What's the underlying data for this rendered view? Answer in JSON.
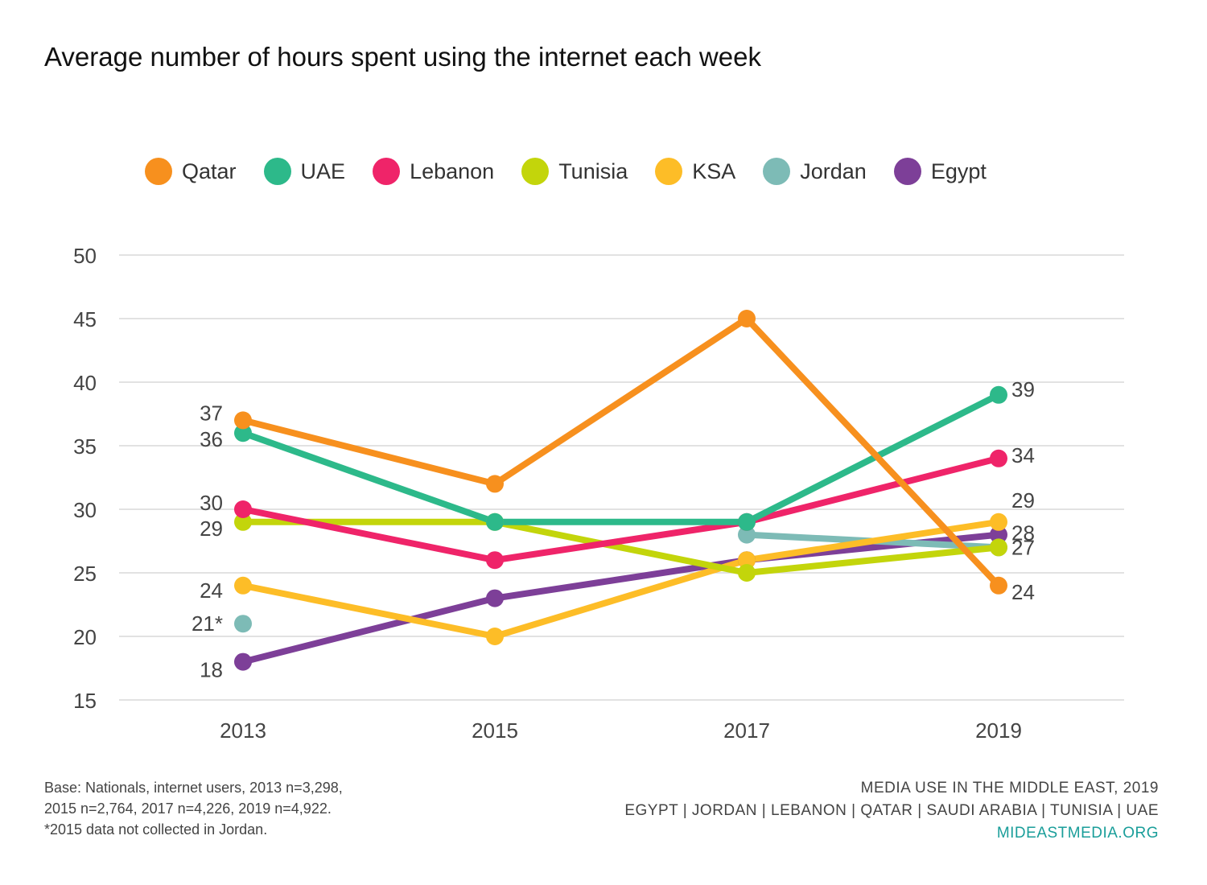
{
  "title": "Average number of hours spent using the internet each week",
  "footer": {
    "base_lines": [
      "Base: Nationals, internet users, 2013 n=3,298,",
      "2015 n=2,764, 2017 n=4,226, 2019 n=4,922.",
      "*2015 data not collected in Jordan."
    ],
    "source_title": "MEDIA USE IN THE MIDDLE EAST, 2019",
    "source_countries": "EGYPT | JORDAN | LEBANON | QATAR | SAUDI ARABIA | TUNISIA | UAE",
    "site": "MIDEASTMEDIA.ORG"
  },
  "chart_data": {
    "type": "line",
    "x": [
      "2013",
      "2015",
      "2017",
      "2019"
    ],
    "ylim": [
      15,
      50
    ],
    "yticks": [
      15,
      20,
      25,
      30,
      35,
      40,
      45,
      50
    ],
    "grid": true,
    "legend_position": "top",
    "series": [
      {
        "name": "Qatar",
        "color": "#F7901E",
        "values": [
          37,
          32,
          45,
          24
        ]
      },
      {
        "name": "UAE",
        "color": "#2DB98A",
        "values": [
          36,
          29,
          29,
          39
        ]
      },
      {
        "name": "Lebanon",
        "color": "#EF2469",
        "values": [
          30,
          26,
          29,
          34
        ]
      },
      {
        "name": "Tunisia",
        "color": "#C3D50B",
        "values": [
          29,
          29,
          25,
          27
        ]
      },
      {
        "name": "KSA",
        "color": "#FDBD27",
        "values": [
          24,
          20,
          26,
          29
        ]
      },
      {
        "name": "Jordan",
        "color": "#7DBBB6",
        "values": [
          21,
          null,
          28,
          27
        ]
      },
      {
        "name": "Egypt",
        "color": "#7D3F98",
        "values": [
          18,
          23,
          26,
          28
        ]
      }
    ],
    "data_labels": {
      "2013": [
        {
          "text": "37",
          "value": 37
        },
        {
          "text": "36",
          "value": 36
        },
        {
          "text": "30",
          "value": 30
        },
        {
          "text": "29",
          "value": 29
        },
        {
          "text": "24",
          "value": 24
        },
        {
          "text": "21*",
          "value": 21
        },
        {
          "text": "18",
          "value": 18
        }
      ],
      "2019": [
        {
          "text": "39",
          "value": 39
        },
        {
          "text": "34",
          "value": 34
        },
        {
          "text": "29",
          "value": 29
        },
        {
          "text": "28",
          "value": 28
        },
        {
          "text": "27",
          "value": 27
        },
        {
          "text": "24",
          "value": 24
        }
      ]
    }
  }
}
